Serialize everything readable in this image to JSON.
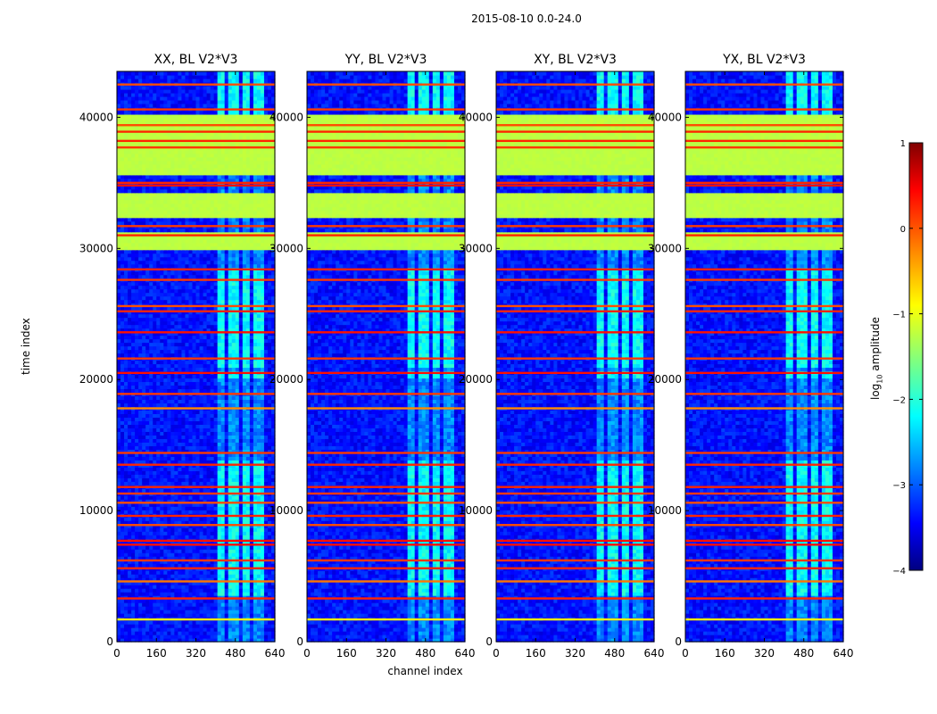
{
  "chart_data": {
    "type": "heatmap",
    "suptitle": "2015-08-10 0.0-24.0",
    "xlabel": "channel index",
    "ylabel": "time index",
    "xlim": [
      0,
      640
    ],
    "ylim": [
      0,
      43500
    ],
    "xticks": [
      0,
      160,
      320,
      480,
      640
    ],
    "yticks": [
      0,
      10000,
      20000,
      30000,
      40000
    ],
    "panels": [
      {
        "title": "XX, BL V2*V3",
        "pol": "XX"
      },
      {
        "title": "YY, BL V2*V3",
        "pol": "YY"
      },
      {
        "title": "XY, BL V2*V3",
        "pol": "XY"
      },
      {
        "title": "YX, BL V2*V3",
        "pol": "YX"
      }
    ],
    "colorbar": {
      "label_prefix": "log",
      "label_sub": "10",
      "label_suffix": " amplitude",
      "range": [
        -4,
        1
      ],
      "ticks": [
        1,
        0,
        -1,
        -2,
        -3,
        -4
      ],
      "tick_labels": [
        "1",
        "0",
        "−1",
        "−2",
        "−3",
        "−4"
      ],
      "colormap": "jet"
    },
    "features": {
      "background_level": -3.3,
      "rfi_channel_bands": [
        [
          405,
          440
        ],
        [
          455,
          490
        ],
        [
          505,
          540
        ],
        [
          555,
          590
        ]
      ],
      "rfi_band_level": -2.1,
      "rfi_strong_time_ranges": [
        [
          36500,
          43500
        ],
        [
          20000,
          20600
        ],
        [
          21000,
          28500
        ],
        [
          3500,
          14000
        ]
      ],
      "flagged_time_ranges": [
        [
          35600,
          40300
        ],
        [
          32300,
          34300
        ],
        [
          29800,
          31200
        ]
      ],
      "flagged_level": -1.2,
      "hot_rows": [
        {
          "t": 38200,
          "level": 0.2
        },
        {
          "t": 38900,
          "level": 0.2
        },
        {
          "t": 37700,
          "level": 0.1
        },
        {
          "t": 39400,
          "level": 0.0
        },
        {
          "t": 35000,
          "level": 0.2
        },
        {
          "t": 34800,
          "level": 0.3
        },
        {
          "t": 31700,
          "level": 0.1
        },
        {
          "t": 31000,
          "level": 0.2
        },
        {
          "t": 28400,
          "level": 0.2
        },
        {
          "t": 27600,
          "level": 0.1
        },
        {
          "t": 25600,
          "level": 0.0
        },
        {
          "t": 25200,
          "level": 0.2
        },
        {
          "t": 23600,
          "level": 0.3
        },
        {
          "t": 21600,
          "level": 0.1
        },
        {
          "t": 20500,
          "level": 0.3
        },
        {
          "t": 18900,
          "level": 0.1
        },
        {
          "t": 17800,
          "level": -0.3
        },
        {
          "t": 14400,
          "level": 0.1
        },
        {
          "t": 13500,
          "level": 0.2
        },
        {
          "t": 11800,
          "level": 0.2
        },
        {
          "t": 11300,
          "level": 0.1
        },
        {
          "t": 10600,
          "level": 0.0
        },
        {
          "t": 9600,
          "level": 0.2
        },
        {
          "t": 8900,
          "level": 0.0
        },
        {
          "t": 7700,
          "level": 0.3
        },
        {
          "t": 7400,
          "level": 0.3
        },
        {
          "t": 6200,
          "level": 0.1
        },
        {
          "t": 5600,
          "level": 0.2
        },
        {
          "t": 4600,
          "level": -0.2
        },
        {
          "t": 3300,
          "level": 0.2
        },
        {
          "t": 1700,
          "level": -0.8
        },
        {
          "t": 42500,
          "level": 0.0
        },
        {
          "t": 40600,
          "level": 0.1
        }
      ]
    }
  }
}
